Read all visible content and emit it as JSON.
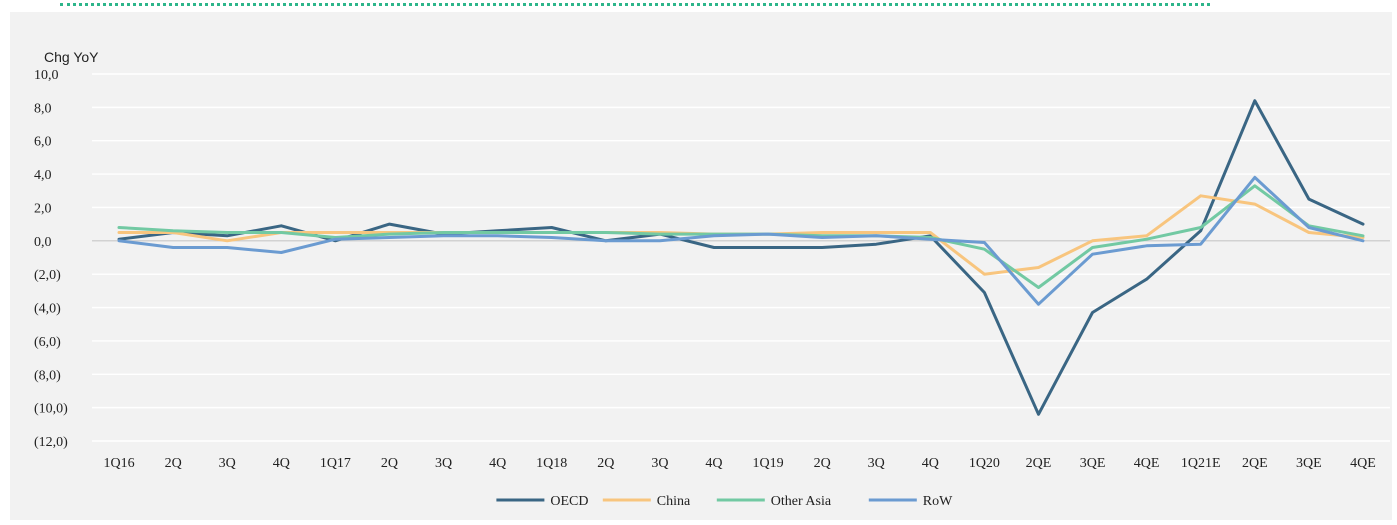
{
  "chart_data": {
    "type": "line",
    "ylabel": "Chg YoY",
    "xlabel": "",
    "ylim": [
      -12,
      10
    ],
    "yticks": [
      10,
      8,
      6,
      4,
      2,
      0,
      -2,
      -4,
      -6,
      -8,
      -10,
      -12
    ],
    "ytick_labels": [
      "10,0",
      "8,0",
      "6,0",
      "4,0",
      "2,0",
      "0,0",
      "(2,0)",
      "(4,0)",
      "(6,0)",
      "(8,0)",
      "(10,0)",
      "(12,0)"
    ],
    "categories": [
      "1Q16",
      "2Q",
      "3Q",
      "4Q",
      "1Q17",
      "2Q",
      "3Q",
      "4Q",
      "1Q18",
      "2Q",
      "3Q",
      "4Q",
      "1Q19",
      "2Q",
      "3Q",
      "4Q",
      "1Q20",
      "2QE",
      "3QE",
      "4QE",
      "1Q21E",
      "2QE",
      "3QE",
      "4QE"
    ],
    "grid": "horizontal",
    "legend_position": "bottom",
    "series": [
      {
        "name": "OECD",
        "color": "#3a6684",
        "values": [
          0.1,
          0.5,
          0.3,
          0.9,
          0.0,
          1.0,
          0.4,
          0.6,
          0.8,
          0.0,
          0.4,
          -0.4,
          -0.4,
          -0.4,
          -0.2,
          0.3,
          -3.1,
          -10.4,
          -4.3,
          -2.3,
          0.6,
          8.4,
          2.5,
          1.0
        ]
      },
      {
        "name": "China",
        "color": "#f8c57e",
        "values": [
          0.5,
          0.5,
          0.0,
          0.5,
          0.5,
          0.5,
          0.5,
          0.5,
          0.5,
          0.5,
          0.5,
          0.4,
          0.4,
          0.5,
          0.5,
          0.5,
          -2.0,
          -1.6,
          0.0,
          0.3,
          2.7,
          2.2,
          0.5,
          0.2
        ]
      },
      {
        "name": "Other Asia",
        "color": "#72c9a3",
        "values": [
          0.8,
          0.6,
          0.5,
          0.5,
          0.2,
          0.4,
          0.5,
          0.5,
          0.5,
          0.5,
          0.4,
          0.4,
          0.4,
          0.3,
          0.3,
          0.2,
          -0.5,
          -2.8,
          -0.4,
          0.1,
          0.8,
          3.3,
          0.9,
          0.3
        ]
      },
      {
        "name": "RoW",
        "color": "#6b9bd1",
        "values": [
          0.0,
          -0.4,
          -0.4,
          -0.7,
          0.1,
          0.2,
          0.3,
          0.3,
          0.2,
          0.0,
          0.0,
          0.3,
          0.4,
          0.2,
          0.3,
          0.1,
          -0.1,
          -3.8,
          -0.8,
          -0.3,
          -0.2,
          3.8,
          0.8,
          0.0
        ]
      }
    ]
  }
}
